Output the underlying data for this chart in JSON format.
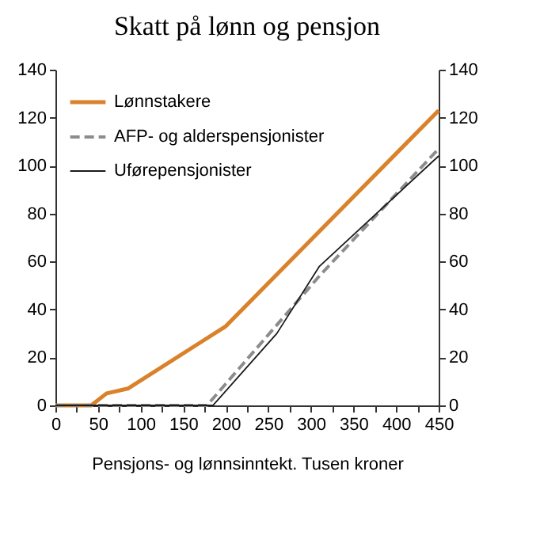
{
  "chart_data": {
    "type": "line",
    "title": "Skatt på lønn og pensjon",
    "xlabel": "Pensjons- og lønnsinntekt. Tusen kroner",
    "series": [
      {
        "name": "Lønnstakere",
        "color": "#d9822b",
        "line_style": "solid",
        "x": [
          0,
          42,
          60,
          85,
          200,
          450
        ],
        "values": [
          0,
          0,
          5,
          7,
          33,
          123
        ]
      },
      {
        "name": "AFP- og alderspensjonister",
        "color": "#8c8c8c",
        "line_style": "dashed",
        "x": [
          0,
          178,
          200,
          310,
          450
        ],
        "values": [
          0,
          0,
          9,
          54,
          107
        ]
      },
      {
        "name": "Uførepensjonister",
        "color": "#1a1a1a",
        "line_style": "solid",
        "x": [
          0,
          185,
          260,
          310,
          450
        ],
        "values": [
          0,
          0,
          30,
          58,
          104
        ]
      }
    ],
    "xlim": [
      0,
      450
    ],
    "xticks": [
      0,
      {
        "value": 25,
        "label": null
      },
      50,
      {
        "value": 75,
        "label": null
      },
      100,
      {
        "value": 125,
        "label": null
      },
      150,
      {
        "value": 175,
        "label": null
      },
      200,
      {
        "value": 225,
        "label": null
      },
      250,
      {
        "value": 275,
        "label": null
      },
      300,
      {
        "value": 325,
        "label": null
      },
      350,
      {
        "value": 375,
        "label": null
      },
      400,
      {
        "value": 425,
        "label": null
      },
      450
    ],
    "ylim": [
      0,
      140
    ],
    "yticks": [
      0,
      20,
      40,
      60,
      80,
      100,
      120,
      140
    ],
    "y2lim": [
      0,
      140
    ],
    "y2ticks": [
      0,
      20,
      40,
      60,
      80,
      100,
      120,
      140
    ],
    "legend": "top left",
    "grid": false
  }
}
